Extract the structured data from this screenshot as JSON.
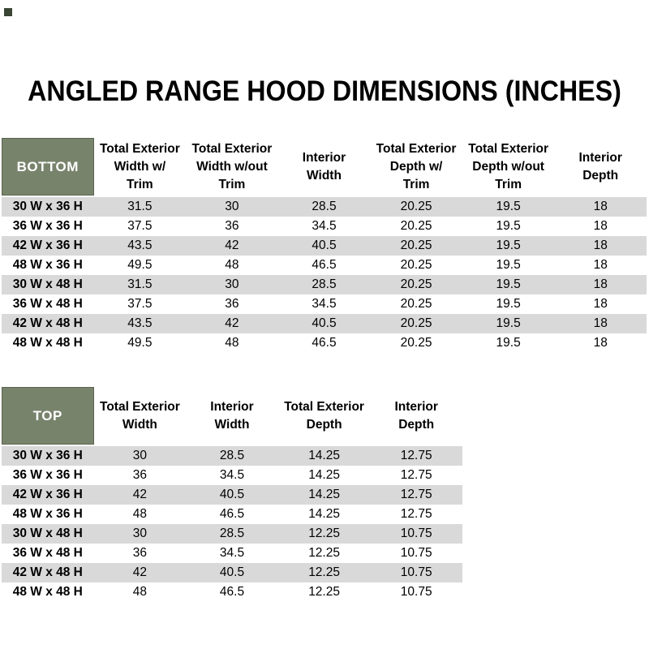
{
  "title": "ANGLED RANGE HOOD DIMENSIONS (INCHES)",
  "colors": {
    "header_green": "#78836C",
    "header_green_border": "#5A644E",
    "row_alt_gray": "#D9D9D9",
    "row_base_white": "#FFFFFF",
    "text": "#000000",
    "corner_mark": "#3A4534"
  },
  "bottom_table": {
    "label": "BOTTOM",
    "columns": [
      {
        "label": "Total Exterior Width w/ Trim",
        "lines": [
          "Total Exterior",
          "Width w/",
          "Trim"
        ]
      },
      {
        "label": "Total Exterior Width w/out Trim",
        "lines": [
          "Total Exterior",
          "Width w/out",
          "Trim"
        ]
      },
      {
        "label": "Interior Width",
        "lines": [
          "Interior",
          "Width"
        ]
      },
      {
        "label": "Total Exterior Depth w/ Trim",
        "lines": [
          "Total Exterior",
          "Depth w/",
          "Trim"
        ]
      },
      {
        "label": "Total Exterior Depth w/out Trim",
        "lines": [
          "Total Exterior",
          "Depth w/out",
          "Trim"
        ]
      },
      {
        "label": "Interior Depth",
        "lines": [
          "Interior",
          "Depth"
        ]
      }
    ],
    "rows": [
      {
        "size": "30 W x 36 H",
        "values": [
          "31.5",
          "30",
          "28.5",
          "20.25",
          "19.5",
          "18"
        ]
      },
      {
        "size": "36 W x 36 H",
        "values": [
          "37.5",
          "36",
          "34.5",
          "20.25",
          "19.5",
          "18"
        ]
      },
      {
        "size": "42 W x 36 H",
        "values": [
          "43.5",
          "42",
          "40.5",
          "20.25",
          "19.5",
          "18"
        ]
      },
      {
        "size": "48 W x 36 H",
        "values": [
          "49.5",
          "48",
          "46.5",
          "20.25",
          "19.5",
          "18"
        ]
      },
      {
        "size": "30 W x 48 H",
        "values": [
          "31.5",
          "30",
          "28.5",
          "20.25",
          "19.5",
          "18"
        ]
      },
      {
        "size": "36 W x 48 H",
        "values": [
          "37.5",
          "36",
          "34.5",
          "20.25",
          "19.5",
          "18"
        ]
      },
      {
        "size": "42 W x 48 H",
        "values": [
          "43.5",
          "42",
          "40.5",
          "20.25",
          "19.5",
          "18"
        ]
      },
      {
        "size": "48 W x 48 H",
        "values": [
          "49.5",
          "48",
          "46.5",
          "20.25",
          "19.5",
          "18"
        ]
      }
    ]
  },
  "top_table": {
    "label": "TOP",
    "columns": [
      {
        "label": "Total Exterior Width",
        "lines": [
          "Total Exterior",
          "Width"
        ]
      },
      {
        "label": "Interior Width",
        "lines": [
          "Interior",
          "Width"
        ]
      },
      {
        "label": "Total Exterior Depth",
        "lines": [
          "Total Exterior",
          "Depth"
        ]
      },
      {
        "label": "Interior Depth",
        "lines": [
          "Interior",
          "Depth"
        ]
      }
    ],
    "rows": [
      {
        "size": "30 W x 36 H",
        "values": [
          "30",
          "28.5",
          "14.25",
          "12.75"
        ]
      },
      {
        "size": "36 W x 36 H",
        "values": [
          "36",
          "34.5",
          "14.25",
          "12.75"
        ]
      },
      {
        "size": "42 W x 36 H",
        "values": [
          "42",
          "40.5",
          "14.25",
          "12.75"
        ]
      },
      {
        "size": "48 W x 36 H",
        "values": [
          "48",
          "46.5",
          "14.25",
          "12.75"
        ]
      },
      {
        "size": "30 W x 48 H",
        "values": [
          "30",
          "28.5",
          "12.25",
          "10.75"
        ]
      },
      {
        "size": "36 W x 48 H",
        "values": [
          "36",
          "34.5",
          "12.25",
          "10.75"
        ]
      },
      {
        "size": "42 W x 48 H",
        "values": [
          "42",
          "40.5",
          "12.25",
          "10.75"
        ]
      },
      {
        "size": "48 W x 48 H",
        "values": [
          "48",
          "46.5",
          "12.25",
          "10.75"
        ]
      }
    ]
  }
}
